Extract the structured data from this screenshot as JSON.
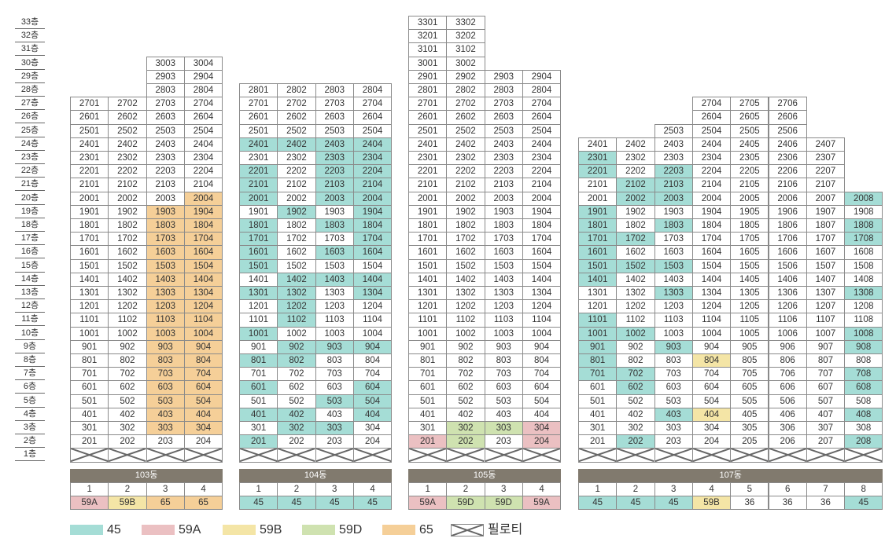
{
  "colors": {
    "45": "#a5ddd6",
    "59A": "#ebc0c2",
    "59B": "#f4e5a6",
    "59D": "#cfe2b0",
    "65": "#f5cf98",
    "none": "#ffffff"
  },
  "floor_labels": [
    "33층",
    "32층",
    "31층",
    "30층",
    "29층",
    "28층",
    "27층",
    "26층",
    "25층",
    "24층",
    "23층",
    "22층",
    "21층",
    "20층",
    "19층",
    "18층",
    "17층",
    "16층",
    "15층",
    "14층",
    "13층",
    "12층",
    "11층",
    "10층",
    "9층",
    "8층",
    "7층",
    "6층",
    "5층",
    "4층",
    "3층",
    "2층",
    "1층"
  ],
  "buildings": [
    {
      "name": "103동",
      "lines": [
        {
          "no": "1",
          "type": "59A",
          "top": 27
        },
        {
          "no": "2",
          "type": "59B",
          "top": 27
        },
        {
          "no": "3",
          "type": "65",
          "top": 30
        },
        {
          "no": "4",
          "type": "65",
          "top": 30
        }
      ],
      "colored": {
        "3": "65:3-19",
        "4": "65:3-20"
      }
    },
    {
      "name": "104동",
      "lines": [
        {
          "no": "1",
          "type": "45",
          "top": 28
        },
        {
          "no": "2",
          "type": "45",
          "top": 28
        },
        {
          "no": "3",
          "type": "45",
          "top": 28
        },
        {
          "no": "4",
          "type": "45",
          "top": 28
        }
      ],
      "colored": {
        "1": "45:2,4,6,8,10,13,15,16,17,18,20,21,22,24",
        "2": "45:3,4,8,9,11,12,13,14,19,24",
        "3": "45:3,5,9,14,16,18,20,21,22,23,24",
        "4": "45:4,5,6,9,13,14,16,17,18,19,20,21,22,23,24"
      }
    },
    {
      "name": "105동",
      "lines": [
        {
          "no": "1",
          "type": "59A",
          "top": 33
        },
        {
          "no": "2",
          "type": "59D",
          "top": 33
        },
        {
          "no": "3",
          "type": "59D",
          "top": 29
        },
        {
          "no": "4",
          "type": "59A",
          "top": 29
        }
      ],
      "colored": {
        "1": "59A:2",
        "2": "59D:2,3",
        "3": "59D:3",
        "4": "59A:2,3"
      }
    },
    {
      "name": "107동",
      "lines": [
        {
          "no": "1",
          "type": "45",
          "top": 24
        },
        {
          "no": "2",
          "type": "45",
          "top": 24
        },
        {
          "no": "3",
          "type": "45",
          "top": 25
        },
        {
          "no": "4",
          "type": "59B",
          "top": 27
        },
        {
          "no": "5",
          "type": "36",
          "top": 27
        },
        {
          "no": "6",
          "type": "36",
          "top": 27
        },
        {
          "no": "7",
          "type": "36",
          "top": 24
        },
        {
          "no": "8",
          "type": "45",
          "top": 20
        }
      ],
      "colored": {
        "1": "45:7,8,9,10,11,14,15,16,17,18,19,22,23",
        "2": "45:2,6,7,10,15,17,20,21",
        "3": "45:4,9,13,15,18,20,21,22",
        "4": "59B:4,8",
        "8": "45:2,4,6,7,9,10,13,17,18,20"
      }
    }
  ],
  "legend": [
    {
      "label": "45",
      "type": "45"
    },
    {
      "label": "59A",
      "type": "59A"
    },
    {
      "label": "59B",
      "type": "59B"
    },
    {
      "label": "59D",
      "type": "59D"
    },
    {
      "label": "65",
      "type": "65"
    },
    {
      "label": "필로티",
      "type": "piloti"
    }
  ]
}
